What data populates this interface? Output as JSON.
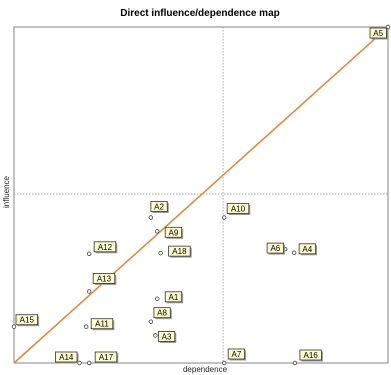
{
  "chart_data": {
    "type": "scatter",
    "title": "Direct influence/dependence map",
    "xlabel": "dependence",
    "ylabel": "influence",
    "xlim": [
      0,
      100
    ],
    "ylim": [
      0,
      100
    ],
    "grid": false,
    "legend": "none",
    "quadrant_lines": {
      "x": 55.9,
      "y": 50.3
    },
    "diagonal": {
      "from": [
        0,
        0
      ],
      "to": [
        100,
        100
      ],
      "color": "#e38a3e"
    },
    "points": [
      {
        "label": "A5",
        "x": 100.0,
        "y": 100.0
      },
      {
        "label": "A2",
        "x": 36.6,
        "y": 43.3
      },
      {
        "label": "A10",
        "x": 56.2,
        "y": 43.3
      },
      {
        "label": "A9",
        "x": 38.3,
        "y": 39.2
      },
      {
        "label": "A18",
        "x": 39.2,
        "y": 32.7
      },
      {
        "label": "A12",
        "x": 20.1,
        "y": 32.5
      },
      {
        "label": "A6",
        "x": 72.5,
        "y": 33.9
      },
      {
        "label": "A4",
        "x": 74.9,
        "y": 32.8
      },
      {
        "label": "A13",
        "x": 20.1,
        "y": 21.3
      },
      {
        "label": "A1",
        "x": 38.3,
        "y": 19.1
      },
      {
        "label": "A8",
        "x": 36.6,
        "y": 12.3
      },
      {
        "label": "A15",
        "x": 0.0,
        "y": 10.8
      },
      {
        "label": "A11",
        "x": 19.3,
        "y": 10.8
      },
      {
        "label": "A3",
        "x": 37.8,
        "y": 8.2
      },
      {
        "label": "A14",
        "x": 17.5,
        "y": 0.0
      },
      {
        "label": "A17",
        "x": 20.1,
        "y": 0.0
      },
      {
        "label": "A7",
        "x": 56.2,
        "y": 0.0
      },
      {
        "label": "A16",
        "x": 75.1,
        "y": 0.0
      }
    ]
  }
}
